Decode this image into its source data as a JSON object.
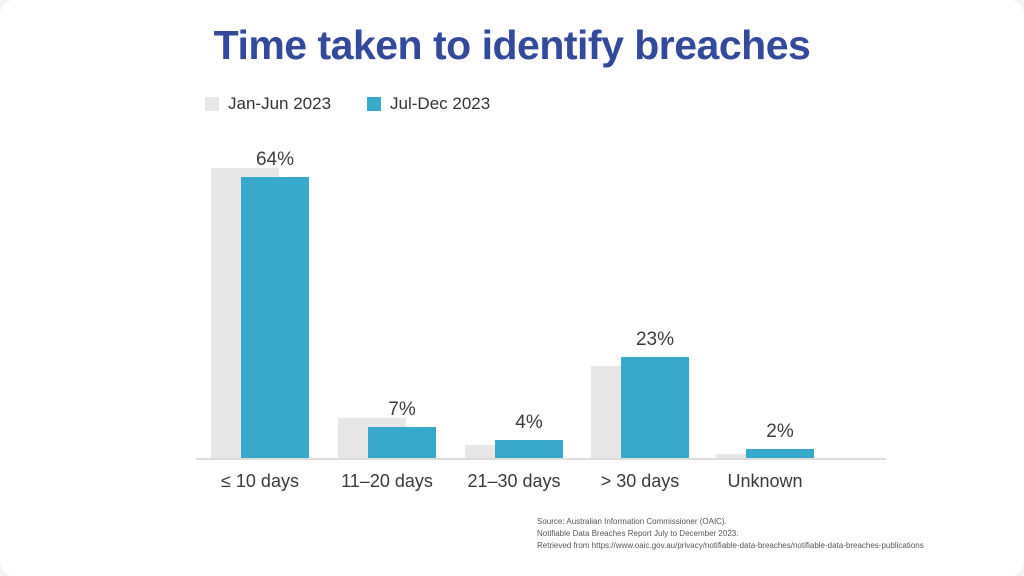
{
  "slide": {
    "title": "Time taken to identify breaches",
    "source_lines": [
      "Source: Australian Information Commissioner (OAIC).",
      "Notifiable Data Breaches Report July to December 2023.",
      "Retrieved from https://www.oaic.gov.au/privacy/notifiable-data-breaches/notifiable-data-breaches-publications"
    ]
  },
  "legend": [
    {
      "label": "Jan-Jun 2023",
      "color": "#e8e6e6"
    },
    {
      "label": "Jul-Dec 2023",
      "color": "#36a9cd"
    }
  ],
  "chart_data": {
    "type": "bar",
    "title": "Time taken to identify breaches",
    "categories": [
      "≤ 10 days",
      "11–20 days",
      "21–30 days",
      "> 30 days",
      "Unknown"
    ],
    "series": [
      {
        "name": "Jan-Jun 2023",
        "color": "#e8e6e6",
        "values": [
          66,
          9,
          3,
          21,
          1
        ],
        "data_labels_shown": false
      },
      {
        "name": "Jul-Dec 2023",
        "color": "#36a9cd",
        "values": [
          64,
          7,
          4,
          23,
          2
        ],
        "data_labels_shown": true,
        "data_labels": [
          "64%",
          "7%",
          "4%",
          "23%",
          "2%"
        ]
      }
    ],
    "unit": "%",
    "ylim": [
      0,
      70
    ],
    "grid": false,
    "y_axis_shown": false,
    "x_axis_line_shown": true,
    "legend_position": "top-left",
    "bar_style": "overlapped-pairs"
  },
  "colors": {
    "title": "#32499c",
    "axis_line": "#dcdcdc",
    "label_text": "#3d3d3d",
    "background": "#ffffff"
  }
}
